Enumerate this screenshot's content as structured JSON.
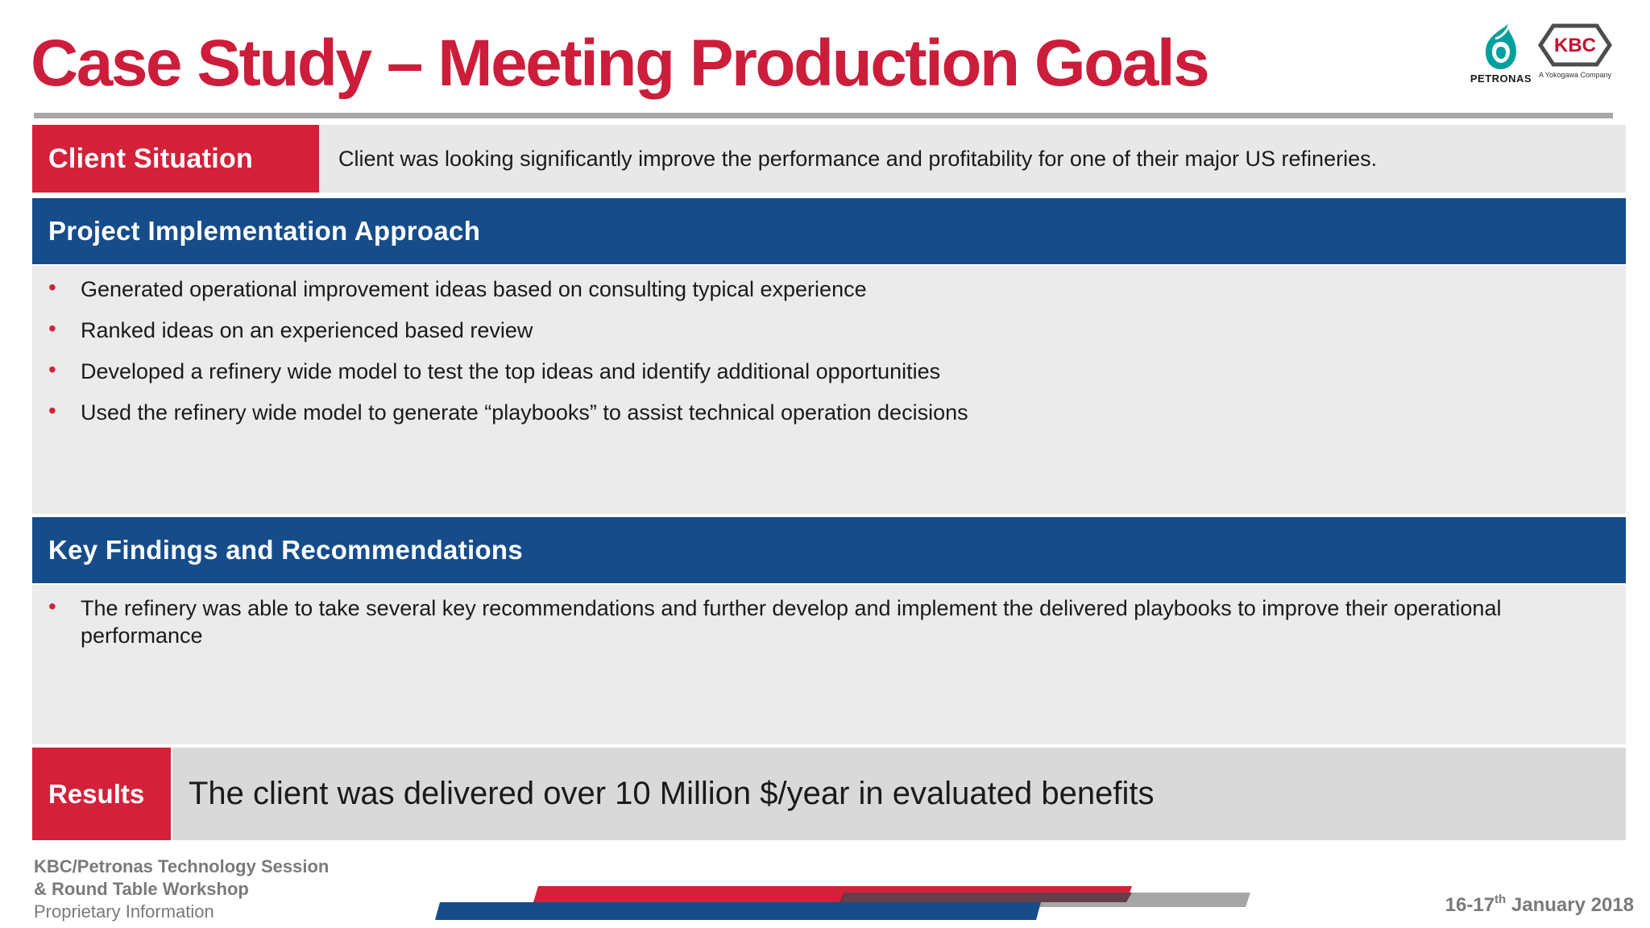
{
  "header": {
    "title": "Case Study – Meeting Production Goals"
  },
  "logos": {
    "petronas_text": "PETRONAS",
    "kbc_text": "KBC",
    "kbc_tagline": "A Yokogawa Company"
  },
  "client_situation": {
    "label": "Client Situation",
    "text": "Client was looking significantly improve the performance and profitability for one of their major US refineries."
  },
  "approach": {
    "heading": "Project Implementation Approach",
    "bullets": [
      "Generated operational improvement ideas based on consulting typical experience",
      "Ranked ideas on an experienced based review",
      "Developed a refinery wide model to test the top ideas and identify additional opportunities",
      "Used the refinery wide model to generate “playbooks” to assist technical operation decisions"
    ]
  },
  "findings": {
    "heading": "Key Findings and Recommendations",
    "bullets": [
      "The refinery was able to take several key recommendations and further develop and implement the delivered playbooks to improve their operational performance"
    ]
  },
  "results": {
    "label": "Results",
    "text": "The client was delivered over 10 Million $/year in evaluated benefits"
  },
  "footer": {
    "line1": "KBC/Petronas Technology Session",
    "line2": "& Round Table Workshop",
    "line3": "Proprietary Information",
    "date_prefix": "16-17",
    "date_sup": "th",
    "date_suffix": " January 2018"
  },
  "colors": {
    "title_red": "#cc1d3a",
    "label_red": "#d3213a",
    "header_blue": "#164c8a",
    "petronas_teal": "#00a19c",
    "kbc_red": "#c8102e"
  }
}
